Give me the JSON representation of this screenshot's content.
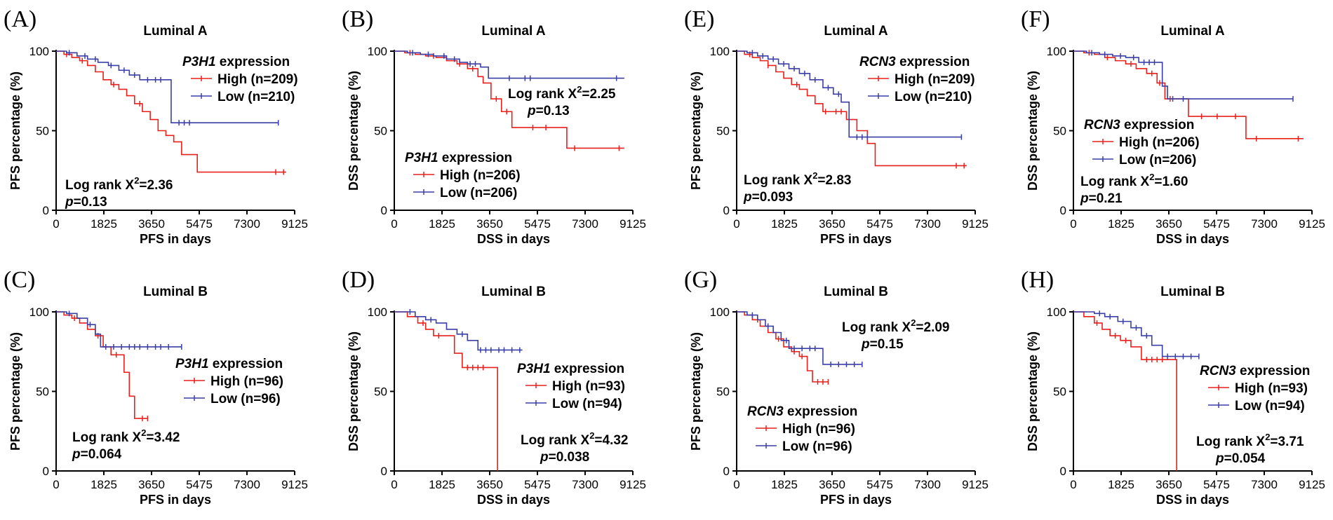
{
  "figure": {
    "colors": {
      "high": "#e8201c",
      "low": "#3a3fa6",
      "axis": "#000000"
    },
    "x_ticks": [
      0,
      1825,
      3650,
      5475,
      7300,
      9125
    ],
    "y_ticks": [
      0,
      50,
      100
    ]
  },
  "chart_data": [
    {
      "id": "A",
      "panel_label": "(A)",
      "type": "line",
      "title": "Luminal A",
      "xlabel": "PFS in days",
      "ylabel": "PFS percentage (%)",
      "xlim": [
        0,
        9125
      ],
      "ylim": [
        0,
        100
      ],
      "legend": {
        "gene": "P3H1",
        "suffix": " expression",
        "high": "High (n=209)",
        "low": "Low (n=210)",
        "position": "top-right"
      },
      "stats": {
        "chi_prefix": "Log rank X",
        "chi_sup": "2",
        "chi_value": "=2.36",
        "p_prefix": "p",
        "p_value": "=0.13",
        "position": "bottom-left"
      },
      "series": [
        {
          "name": "High (n=209)",
          "color": "#e8201c",
          "x": [
            0,
            300,
            600,
            900,
            1200,
            1500,
            1800,
            2100,
            2400,
            2700,
            3000,
            3300,
            3600,
            3900,
            4200,
            4500,
            4800,
            5400,
            8800
          ],
          "y": [
            100,
            98,
            96,
            94,
            91,
            87,
            82,
            79,
            76,
            72,
            67,
            62,
            57,
            50,
            47,
            43,
            35,
            24,
            24
          ],
          "censor": [
            400,
            1000,
            2200,
            3200,
            8400,
            8700
          ]
        },
        {
          "name": "Low (n=210)",
          "color": "#3a3fa6",
          "x": [
            0,
            400,
            800,
            1200,
            1600,
            2000,
            2400,
            2800,
            3200,
            4200,
            4400,
            8500
          ],
          "y": [
            100,
            99,
            97,
            95,
            93,
            91,
            88,
            85,
            82,
            82,
            55,
            55
          ],
          "censor": [
            500,
            1100,
            1500,
            2100,
            2600,
            3000,
            3500,
            3800,
            4000,
            4700,
            4900,
            5100,
            8500
          ]
        }
      ]
    },
    {
      "id": "B",
      "panel_label": "(B)",
      "type": "line",
      "title": "Luminal A",
      "xlabel": "DSS in days",
      "ylabel": "DSS percentage (%)",
      "xlim": [
        0,
        9125
      ],
      "ylim": [
        0,
        100
      ],
      "legend": {
        "gene": "P3H1",
        "suffix": " expression",
        "high": "High (n=206)",
        "low": "Low (n=206)",
        "position": "bottom-left"
      },
      "stats": {
        "chi_prefix": "Log rank X",
        "chi_sup": "2",
        "chi_value": "=2.25",
        "p_prefix": "p",
        "p_value": "=0.13",
        "position": "top-right"
      },
      "series": [
        {
          "name": "High (n=206)",
          "color": "#e8201c",
          "x": [
            0,
            400,
            800,
            1200,
            1600,
            2000,
            2400,
            2800,
            3200,
            3400,
            3700,
            4100,
            4500,
            6600,
            8800
          ],
          "y": [
            100,
            99,
            98,
            97,
            96,
            94,
            92,
            89,
            84,
            80,
            70,
            62,
            52,
            39,
            39
          ],
          "censor": [
            600,
            1500,
            2500,
            3000,
            3900,
            4300,
            5300,
            5800,
            6900,
            8600
          ]
        },
        {
          "name": "Low (n=206)",
          "color": "#3a3fa6",
          "x": [
            0,
            500,
            1000,
            1500,
            2000,
            2500,
            2800,
            3300,
            3600,
            8800
          ],
          "y": [
            100,
            99,
            98,
            97,
            95,
            93,
            92,
            90,
            83,
            83
          ],
          "censor": [
            700,
            1300,
            1900,
            2300,
            2900,
            3100,
            4400,
            5000,
            5200,
            8500
          ]
        }
      ]
    },
    {
      "id": "C",
      "panel_label": "(C)",
      "type": "line",
      "title": "Luminal B",
      "xlabel": "PFS in days",
      "ylabel": "PFS percentage (%)",
      "xlim": [
        0,
        9125
      ],
      "ylim": [
        0,
        100
      ],
      "legend": {
        "gene": "P3H1",
        "suffix": " expression",
        "high": "High (n=96)",
        "low": "Low (n=96)",
        "position": "right"
      },
      "stats": {
        "chi_prefix": "Log rank X",
        "chi_sup": "2",
        "chi_value": "=3.42",
        "p_prefix": "p",
        "p_value": "=0.064",
        "position": "bottom-left"
      },
      "series": [
        {
          "name": "High (n=96)",
          "color": "#e8201c",
          "x": [
            0,
            300,
            600,
            900,
            1200,
            1500,
            1800,
            2100,
            2400,
            2600,
            2800,
            3000,
            3500
          ],
          "y": [
            100,
            98,
            96,
            93,
            89,
            85,
            78,
            73,
            73,
            62,
            47,
            33,
            33
          ],
          "censor": [
            700,
            1600,
            2300,
            3300,
            3500
          ]
        },
        {
          "name": "Low (n=96)",
          "color": "#3a3fa6",
          "x": [
            0,
            400,
            800,
            1200,
            1500,
            1700,
            4800
          ],
          "y": [
            100,
            99,
            96,
            92,
            86,
            78,
            78
          ],
          "censor": [
            500,
            1300,
            1900,
            2200,
            2500,
            2800,
            3000,
            3200,
            3500,
            3800,
            4000,
            4300,
            4800
          ]
        }
      ]
    },
    {
      "id": "D",
      "panel_label": "(D)",
      "type": "line",
      "title": "Luminal B",
      "xlabel": "DSS in days",
      "ylabel": "DSS percentage (%)",
      "xlim": [
        0,
        9125
      ],
      "ylim": [
        0,
        100
      ],
      "legend": {
        "gene": "P3H1",
        "suffix": " expression",
        "high": "High (n=93)",
        "low": "Low (n=94)",
        "position": "right"
      },
      "stats": {
        "chi_prefix": "Log rank X",
        "chi_sup": "2",
        "chi_value": "=4.32",
        "p_prefix": "p",
        "p_value": "=0.038",
        "position": "bottom-right"
      },
      "series": [
        {
          "name": "High (n=93)",
          "color": "#e8201c",
          "x": [
            0,
            500,
            900,
            1200,
            1500,
            2000,
            2300,
            2600,
            3900,
            3950
          ],
          "y": [
            100,
            97,
            93,
            89,
            85,
            85,
            74,
            65,
            65,
            0
          ],
          "censor": [
            1100,
            1700,
            2800,
            3000,
            3200,
            3400
          ]
        },
        {
          "name": "Low (n=94)",
          "color": "#3a3fa6",
          "x": [
            0,
            800,
            1200,
            1600,
            2000,
            2400,
            2800,
            3200,
            4900
          ],
          "y": [
            100,
            97,
            95,
            93,
            89,
            86,
            82,
            76,
            76
          ],
          "censor": [
            600,
            1400,
            2600,
            3300,
            3500,
            3700,
            4000,
            4200,
            4500,
            4800
          ]
        }
      ]
    },
    {
      "id": "E",
      "panel_label": "(E)",
      "type": "line",
      "title": "Luminal A",
      "xlabel": "PFS in days",
      "ylabel": "PFS percentage (%)",
      "xlim": [
        0,
        9125
      ],
      "ylim": [
        0,
        100
      ],
      "legend": {
        "gene": "RCN3",
        "suffix": " expression",
        "high": "High (n=209)",
        "low": "Low (n=210)",
        "position": "top-right"
      },
      "stats": {
        "chi_prefix": "Log rank X",
        "chi_sup": "2",
        "chi_value": "=2.83",
        "p_prefix": "p",
        "p_value": "=0.093",
        "position": "bottom-left"
      },
      "series": [
        {
          "name": "High (n=209)",
          "color": "#e8201c",
          "x": [
            0,
            300,
            600,
            900,
            1200,
            1500,
            1800,
            2100,
            2400,
            2700,
            3000,
            3300,
            3700,
            4200,
            4600,
            5000,
            5300,
            8800
          ],
          "y": [
            100,
            98,
            96,
            94,
            91,
            87,
            83,
            79,
            76,
            72,
            67,
            62,
            62,
            57,
            50,
            42,
            28,
            28
          ],
          "censor": [
            500,
            1200,
            2300,
            3400,
            3800,
            4000,
            8400,
            8700
          ]
        },
        {
          "name": "Low (n=210)",
          "color": "#3a3fa6",
          "x": [
            0,
            400,
            800,
            1200,
            1600,
            2000,
            2400,
            2800,
            3300,
            3700,
            4000,
            4300,
            8600
          ],
          "y": [
            100,
            99,
            97,
            95,
            92,
            89,
            86,
            82,
            77,
            73,
            68,
            46,
            46
          ],
          "censor": [
            600,
            1000,
            1400,
            1800,
            2200,
            2600,
            3000,
            3500,
            3900,
            4600,
            4800,
            5000,
            8600
          ]
        }
      ]
    },
    {
      "id": "F",
      "panel_label": "(F)",
      "type": "line",
      "title": "Luminal A",
      "xlabel": "DSS in days",
      "ylabel": "DSS percentage (%)",
      "xlim": [
        0,
        9125
      ],
      "ylim": [
        0,
        100
      ],
      "legend": {
        "gene": "RCN3",
        "suffix": " expression",
        "high": "High (n=206)",
        "low": "Low (n=206)",
        "position": "left"
      },
      "stats": {
        "chi_prefix": "Log rank X",
        "chi_sup": "2",
        "chi_value": "=1.60",
        "p_prefix": "p",
        "p_value": "=0.21",
        "position": "bottom-left"
      },
      "series": [
        {
          "name": "High (n=206)",
          "color": "#e8201c",
          "x": [
            0,
            400,
            800,
            1200,
            1600,
            2000,
            2400,
            2800,
            3200,
            3500,
            4400,
            6600,
            8800
          ],
          "y": [
            100,
            99,
            98,
            96,
            94,
            92,
            89,
            86,
            80,
            70,
            59,
            45,
            45
          ],
          "censor": [
            600,
            1300,
            2200,
            3000,
            3300,
            3700,
            4900,
            5500,
            6200,
            7000,
            8600
          ]
        },
        {
          "name": "Low (n=206)",
          "color": "#3a3fa6",
          "x": [
            0,
            500,
            1000,
            1500,
            2000,
            2500,
            3200,
            3400,
            3600,
            8400
          ],
          "y": [
            100,
            99,
            98,
            97,
            96,
            93,
            93,
            78,
            70,
            70
          ],
          "censor": [
            700,
            1200,
            1800,
            2300,
            2700,
            2900,
            3100,
            3800,
            4200,
            8400
          ]
        }
      ]
    },
    {
      "id": "G",
      "panel_label": "(G)",
      "type": "line",
      "title": "Luminal B",
      "xlabel": "PFS in days",
      "ylabel": "PFS percentage (%)",
      "xlim": [
        0,
        9125
      ],
      "ylim": [
        0,
        100
      ],
      "legend": {
        "gene": "RCN3",
        "suffix": " expression",
        "high": "High (n=96)",
        "low": "Low (n=96)",
        "position": "bottom-left"
      },
      "stats": {
        "chi_prefix": "Log rank X",
        "chi_sup": "2",
        "chi_value": "=2.09",
        "p_prefix": "p",
        "p_value": "=0.15",
        "position": "top-right"
      },
      "series": [
        {
          "name": "High (n=96)",
          "color": "#e8201c",
          "x": [
            0,
            300,
            600,
            900,
            1200,
            1500,
            1800,
            2100,
            2400,
            2700,
            2900,
            3500
          ],
          "y": [
            100,
            98,
            95,
            91,
            87,
            83,
            78,
            75,
            72,
            63,
            56,
            56
          ],
          "censor": [
            800,
            1600,
            2200,
            2500,
            3100,
            3300,
            3500
          ]
        },
        {
          "name": "Low (n=96)",
          "color": "#3a3fa6",
          "x": [
            0,
            400,
            800,
            1100,
            1400,
            1700,
            2000,
            3300,
            4800
          ],
          "y": [
            100,
            98,
            95,
            91,
            87,
            82,
            77,
            67,
            67
          ],
          "censor": [
            600,
            1200,
            1900,
            2200,
            2500,
            2800,
            3000,
            3600,
            3900,
            4200,
            4500,
            4800
          ]
        }
      ]
    },
    {
      "id": "H",
      "panel_label": "(H)",
      "type": "line",
      "title": "Luminal B",
      "xlabel": "DSS in days",
      "ylabel": "DSS percentage (%)",
      "xlim": [
        0,
        9125
      ],
      "ylim": [
        0,
        100
      ],
      "legend": {
        "gene": "RCN3",
        "suffix": " expression",
        "high": "High (n=93)",
        "low": "Low (n=94)",
        "position": "right"
      },
      "stats": {
        "chi_prefix": "Log rank X",
        "chi_sup": "2",
        "chi_value": "=3.71",
        "p_prefix": "p",
        "p_value": "=0.054",
        "position": "bottom-right"
      },
      "series": [
        {
          "name": "High (n=93)",
          "color": "#e8201c",
          "x": [
            0,
            400,
            800,
            1100,
            1400,
            1800,
            2200,
            2600,
            3900,
            3950
          ],
          "y": [
            100,
            97,
            93,
            89,
            85,
            82,
            78,
            70,
            70,
            0
          ],
          "censor": [
            900,
            1600,
            2000,
            2800,
            3000,
            3200,
            3400
          ]
        },
        {
          "name": "Low (n=94)",
          "color": "#3a3fa6",
          "x": [
            0,
            800,
            1200,
            1700,
            2200,
            2600,
            3000,
            3400,
            4800
          ],
          "y": [
            100,
            99,
            97,
            94,
            90,
            85,
            79,
            72,
            72
          ],
          "censor": [
            1000,
            1400,
            1900,
            2400,
            2800,
            3600,
            3900,
            4200,
            4500,
            4800
          ]
        }
      ]
    }
  ]
}
